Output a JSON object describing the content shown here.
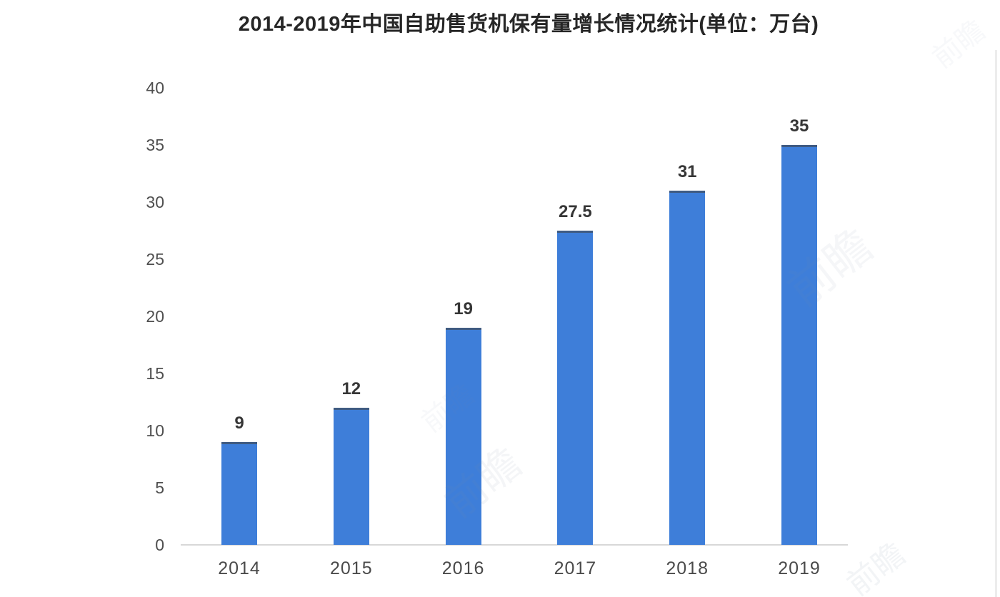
{
  "chart_data": {
    "type": "bar",
    "title": "2014-2019年中国自助售货机保有量增长情况统计(单位：万台)",
    "unit_label": "万台",
    "categories": [
      "2014",
      "2015",
      "2016",
      "2017",
      "2018",
      "2019"
    ],
    "values": [
      9,
      12,
      19,
      27.5,
      31,
      35
    ],
    "xlabel": "",
    "ylabel": "",
    "ylim": [
      0,
      40
    ],
    "yticks": [
      0,
      5,
      10,
      15,
      20,
      25,
      30,
      35,
      40
    ],
    "grid": false,
    "legend_position": "none",
    "bar_color": "#3e7ed9",
    "bar_top_edge_color": "#405064",
    "axis_line_color": "#d8d8d8",
    "value_label_color": "#363636",
    "tick_label_color": "#4f4f4f",
    "background_color": "#ffffff"
  },
  "watermark": {
    "text": "前瞻"
  }
}
